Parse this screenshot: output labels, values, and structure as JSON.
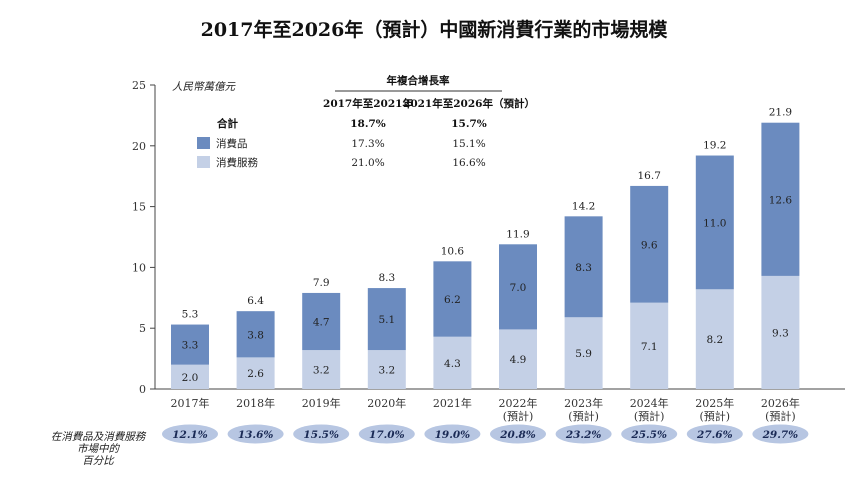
{
  "title": "2017年至2026年（預計）中國新消費行業的市場規模",
  "chart_data": {
    "type": "bar",
    "stacked": true,
    "unit": "人民幣萬億元",
    "categories": [
      "2017年",
      "2018年",
      "2019年",
      "2020年",
      "2021年",
      "2022年",
      "2023年",
      "2024年",
      "2025年",
      "2026年"
    ],
    "category_notes": [
      "",
      "",
      "",
      "",
      "",
      "(預計)",
      "(預計)",
      "(預計)",
      "(預計)",
      "(預計)"
    ],
    "series": [
      {
        "name": "消費服務",
        "color": "#c4d0e6",
        "values": [
          2.0,
          2.6,
          3.2,
          3.2,
          4.3,
          4.9,
          5.9,
          7.1,
          8.2,
          9.3
        ]
      },
      {
        "name": "消費品",
        "color": "#6b8bbf",
        "values": [
          3.3,
          3.8,
          4.7,
          5.1,
          6.2,
          7.0,
          8.3,
          9.6,
          11.0,
          12.6
        ]
      }
    ],
    "totals": [
      5.3,
      6.4,
      7.9,
      8.3,
      10.6,
      11.9,
      14.2,
      16.7,
      19.2,
      21.9
    ],
    "ylim": [
      0,
      25
    ],
    "yticks": [
      0,
      5,
      10,
      15,
      20,
      25
    ],
    "cagr_table": {
      "header": "年複合增長率",
      "columns": [
        "2017年至2021年",
        "2021年至2026年（預計）"
      ],
      "rows": [
        {
          "label": "合計",
          "values": [
            "18.7%",
            "15.7%"
          ],
          "bold": true
        },
        {
          "label": "消費品",
          "values": [
            "17.3%",
            "15.1%"
          ],
          "swatch": "#6b8bbf"
        },
        {
          "label": "消費服務",
          "values": [
            "21.0%",
            "16.6%"
          ],
          "swatch": "#c4d0e6"
        }
      ]
    },
    "share_row": {
      "label_lines": [
        "在消費品及消費服務",
        "市場中的",
        "百分比"
      ],
      "values": [
        "12.1%",
        "13.6%",
        "15.5%",
        "17.0%",
        "19.0%",
        "20.8%",
        "23.2%",
        "25.5%",
        "27.6%",
        "29.7%"
      ]
    }
  }
}
